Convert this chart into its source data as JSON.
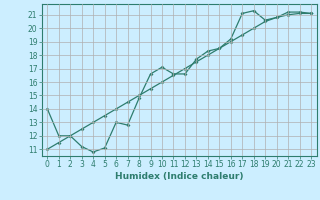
{
  "xlabel": "Humidex (Indice chaleur)",
  "ylabel": "",
  "background_color": "#cceeff",
  "grid_color": "#b0b0b0",
  "line_color": "#2e7d6e",
  "xlim": [
    -0.5,
    23.5
  ],
  "ylim": [
    10.5,
    21.8
  ],
  "yticks": [
    11,
    12,
    13,
    14,
    15,
    16,
    17,
    18,
    19,
    20,
    21
  ],
  "xticks": [
    0,
    1,
    2,
    3,
    4,
    5,
    6,
    7,
    8,
    9,
    10,
    11,
    12,
    13,
    14,
    15,
    16,
    17,
    18,
    19,
    20,
    21,
    22,
    23
  ],
  "line1_x": [
    0,
    1,
    2,
    3,
    4,
    5,
    6,
    7,
    8,
    9,
    10,
    11,
    12,
    13,
    14,
    15,
    16,
    17,
    18,
    19,
    20,
    21,
    22,
    23
  ],
  "line1_y": [
    14.0,
    12.0,
    12.0,
    11.2,
    10.8,
    11.1,
    13.0,
    12.8,
    14.8,
    16.6,
    17.1,
    16.6,
    16.6,
    17.7,
    18.3,
    18.5,
    19.2,
    21.1,
    21.3,
    20.6,
    20.8,
    21.2,
    21.2,
    21.1
  ],
  "line2_x": [
    0,
    1,
    2,
    3,
    4,
    5,
    6,
    7,
    8,
    9,
    10,
    11,
    12,
    13,
    14,
    15,
    16,
    17,
    18,
    19,
    20,
    21,
    22,
    23
  ],
  "line2_y": [
    11.0,
    11.5,
    12.0,
    12.5,
    13.0,
    13.5,
    14.0,
    14.5,
    15.0,
    15.5,
    16.0,
    16.5,
    17.0,
    17.5,
    18.0,
    18.5,
    19.0,
    19.5,
    20.0,
    20.5,
    20.8,
    21.0,
    21.1,
    21.1
  ]
}
